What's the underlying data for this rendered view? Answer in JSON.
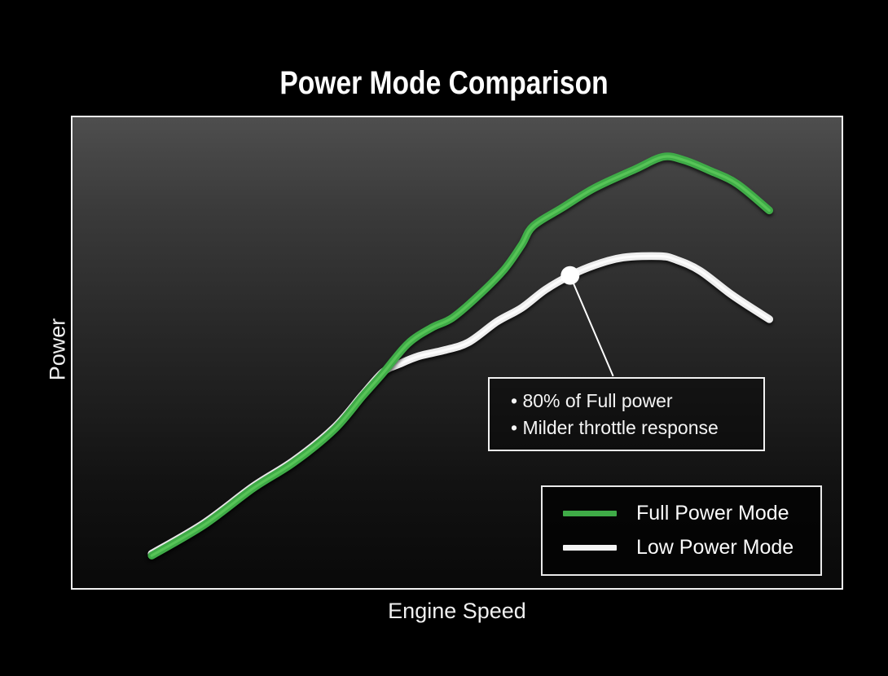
{
  "chart_data": {
    "type": "line",
    "title": "Power Mode Comparison",
    "xlabel": "Engine Speed",
    "ylabel": "Power",
    "xlim": [
      0,
      100
    ],
    "ylim": [
      0,
      100
    ],
    "grid": false,
    "axis_ticks": "none",
    "plot_border_color": "#f2f2f2",
    "background_color": "#000000",
    "legend": {
      "position": "lower right",
      "entries": [
        {
          "label": "Full Power Mode",
          "color": "#3fab47"
        },
        {
          "label": "Low Power Mode",
          "color": "#f4f4f4"
        }
      ]
    },
    "series": [
      {
        "name": "Full Power Mode",
        "color": "#3fab47",
        "core_color": "#5ecb5b",
        "width": 9.5,
        "z": 2,
        "points": [
          [
            10.3,
            6.9
          ],
          [
            17.1,
            13.4
          ],
          [
            23.5,
            21.2
          ],
          [
            28.8,
            26.7
          ],
          [
            34.0,
            33.6
          ],
          [
            37.7,
            40.7
          ],
          [
            40.4,
            45.7
          ],
          [
            43.6,
            51.9
          ],
          [
            46.7,
            55.3
          ],
          [
            49.4,
            57.4
          ],
          [
            53.1,
            62.6
          ],
          [
            56.2,
            67.8
          ],
          [
            58.4,
            72.9
          ],
          [
            59.9,
            76.9
          ],
          [
            63.6,
            80.7
          ],
          [
            67.9,
            85.0
          ],
          [
            73.2,
            89.0
          ],
          [
            76.8,
            91.6
          ],
          [
            79.5,
            90.9
          ],
          [
            82.7,
            88.8
          ],
          [
            86.4,
            85.9
          ],
          [
            90.6,
            80.2
          ]
        ]
      },
      {
        "name": "Low Power Mode",
        "color": "#ededed",
        "core_color": "#ffffff",
        "width": 9.5,
        "z": 1,
        "points": [
          [
            10.3,
            7.3
          ],
          [
            17.1,
            13.8
          ],
          [
            23.5,
            21.6
          ],
          [
            28.8,
            27.1
          ],
          [
            34.0,
            34.0
          ],
          [
            37.7,
            41.0
          ],
          [
            40.4,
            45.9
          ],
          [
            42.5,
            47.6
          ],
          [
            45.1,
            49.3
          ],
          [
            48.3,
            50.5
          ],
          [
            51.5,
            52.2
          ],
          [
            55.2,
            56.6
          ],
          [
            58.4,
            59.5
          ],
          [
            61.5,
            63.4
          ],
          [
            64.7,
            66.4
          ],
          [
            67.9,
            68.6
          ],
          [
            71.6,
            70.2
          ],
          [
            76.3,
            70.5
          ],
          [
            78.4,
            69.8
          ],
          [
            81.6,
            67.4
          ],
          [
            85.8,
            62.2
          ],
          [
            90.6,
            57.1
          ]
        ]
      }
    ],
    "callout": {
      "lines": [
        "• 80% of Full power",
        "• Milder throttle response"
      ],
      "dot": {
        "x": 64.7,
        "y": 66.4,
        "radius": 11.5,
        "color": "#ffffff"
      },
      "connector_end": {
        "x": 70.3,
        "y": 45.0
      },
      "connector_color": "#ffffff"
    }
  }
}
